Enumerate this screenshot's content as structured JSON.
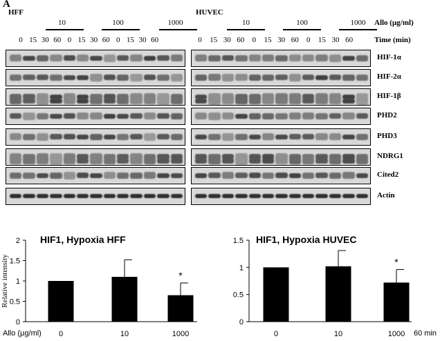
{
  "panel_label": "A",
  "blots": {
    "cell_left": "HFF",
    "cell_right": "HUVEC",
    "dose_header": "Allo (µg/ml)",
    "time_header": "Time (min)",
    "doses": [
      "10",
      "100",
      "1000"
    ],
    "times": [
      "0",
      "15",
      "30",
      "60"
    ],
    "proteins": [
      "HIF-1α",
      "HIF-2α",
      "HIF-1β",
      "PHD2",
      "PHD3",
      "NDRG1",
      "Cited2",
      "Actin"
    ]
  },
  "x_axis_label": "Allo (µg/ml)",
  "x_axis_suffix": "60 min",
  "chart_data": [
    {
      "type": "bar",
      "title": "HIF1, Hypoxia HFF",
      "ylabel": "Relative intensity",
      "xlabel": "",
      "categories": [
        "0",
        "10",
        "1000"
      ],
      "values": [
        1.0,
        1.1,
        0.65
      ],
      "errors": [
        0.0,
        0.42,
        0.3
      ],
      "significant": [
        false,
        false,
        true
      ],
      "ylim": [
        0,
        2
      ],
      "yticks": [
        "0",
        "0.5",
        "1",
        "1.5",
        "2"
      ]
    },
    {
      "type": "bar",
      "title": "HIF1, Hypoxia HUVEC",
      "ylabel": "",
      "xlabel": "",
      "categories": [
        "0",
        "10",
        "1000"
      ],
      "values": [
        1.0,
        1.02,
        0.72
      ],
      "errors": [
        0.0,
        0.29,
        0.24
      ],
      "significant": [
        false,
        false,
        true
      ],
      "ylim": [
        0,
        1.5
      ],
      "yticks": [
        "0",
        "0.5",
        "1",
        "1.5"
      ]
    }
  ]
}
